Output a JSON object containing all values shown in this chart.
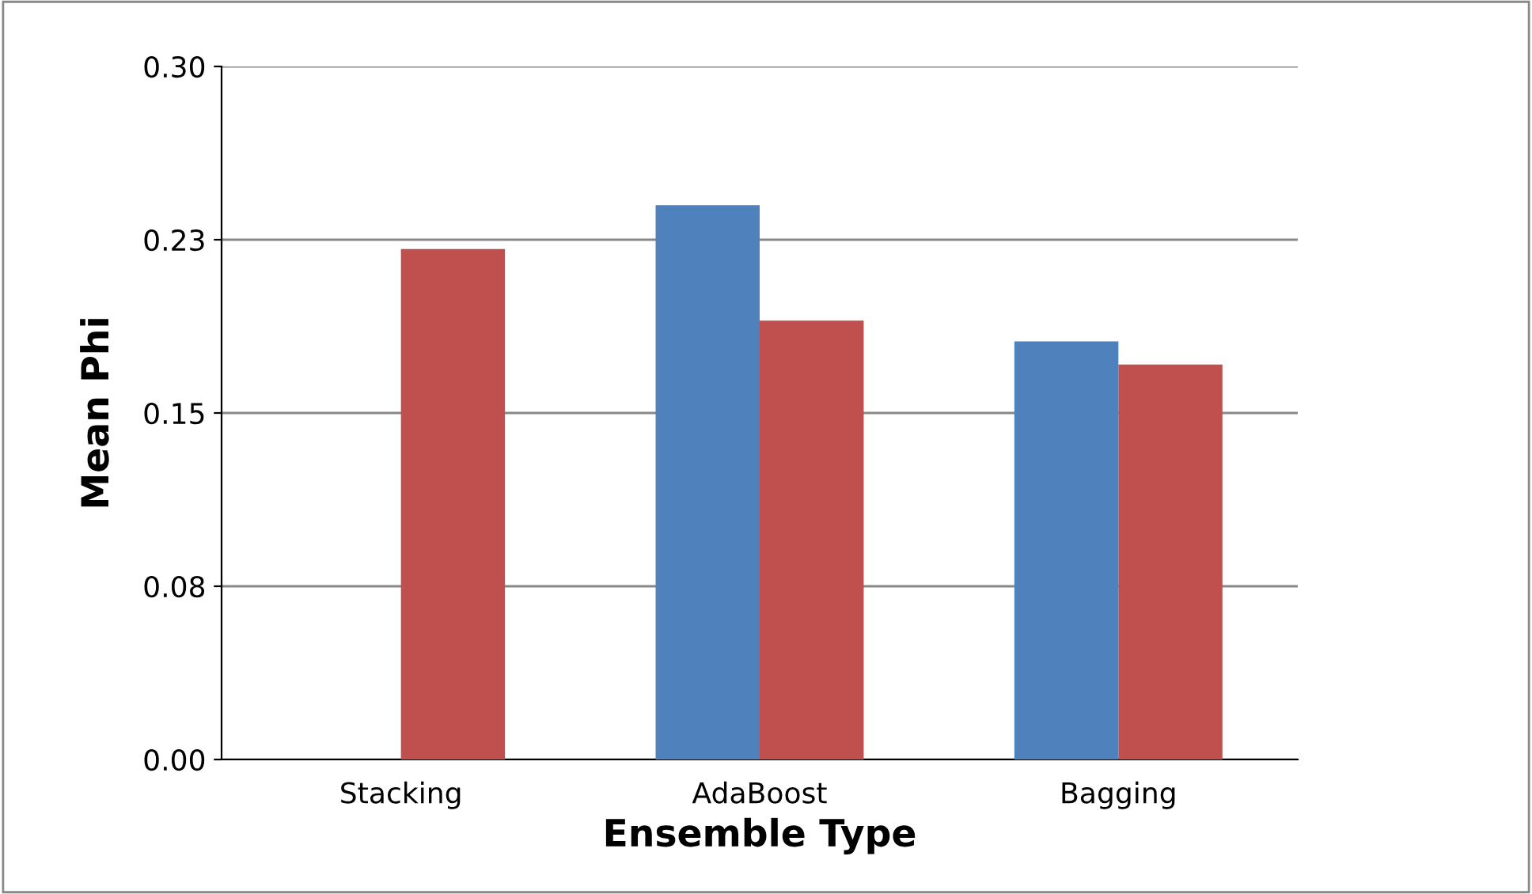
{
  "chart_data": {
    "type": "bar",
    "xlabel": "Ensemble Type",
    "ylabel": "Mean Phi",
    "categories": [
      "Stacking",
      "AdaBoost",
      "Bagging"
    ],
    "series": [
      {
        "color": "#4f81bd",
        "values": [
          null,
          0.24,
          0.181
        ]
      },
      {
        "color": "#c0504d",
        "values": [
          0.221,
          0.19,
          0.171
        ]
      }
    ],
    "ylim": [
      0,
      0.3
    ],
    "yticks": [
      {
        "value": 0,
        "label": "0.00"
      },
      {
        "value": 0.075,
        "label": "0.08"
      },
      {
        "value": 0.15,
        "label": "0.15"
      },
      {
        "value": 0.225,
        "label": "0.23"
      },
      {
        "value": 0.3,
        "label": "0.30"
      }
    ],
    "grid": "y"
  }
}
